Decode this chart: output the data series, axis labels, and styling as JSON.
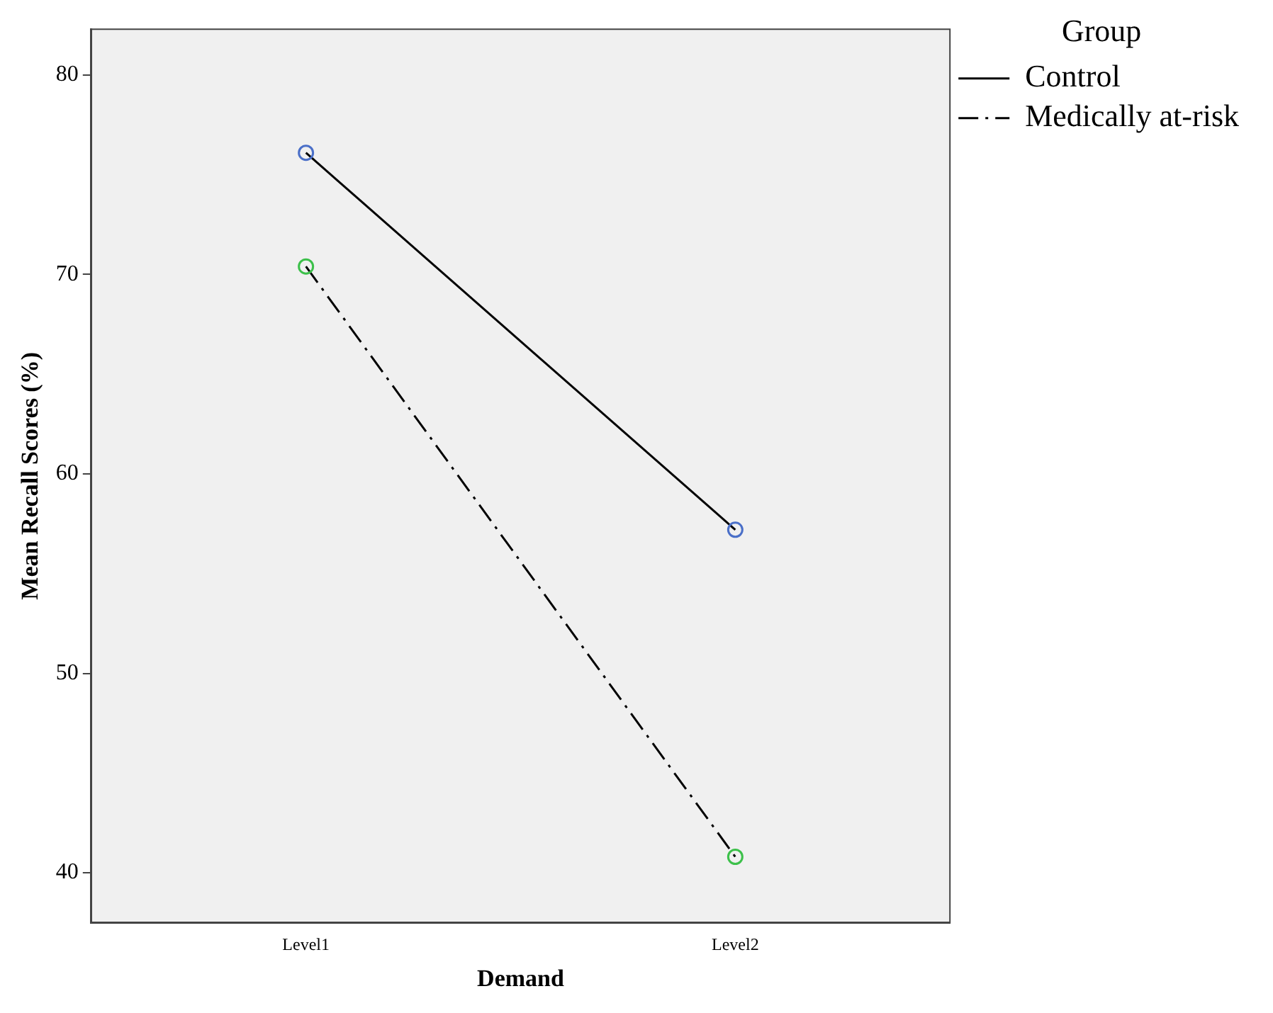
{
  "chart_data": {
    "type": "line",
    "xlabel": "Demand",
    "ylabel": "Mean Recall Scores (%)",
    "legend_title": "Group",
    "legend": "top right",
    "marker": "circle",
    "grid": false,
    "categories": [
      "Level1",
      "Level2"
    ],
    "ylim": [
      37.5,
      82.3
    ],
    "yticks": [
      40,
      50,
      60,
      70,
      80
    ],
    "series": [
      {
        "name": "Control",
        "color": "#000000",
        "colors": [
          "#4a6fc8",
          "#4a6fc8"
        ],
        "line_style": "solid",
        "values": [
          76.1,
          57.2
        ]
      },
      {
        "name": "Medically at-risk",
        "color": "#000000",
        "colors": [
          "#3cc04a",
          "#3cc04a"
        ],
        "line_style": "dashed",
        "values": [
          70.4,
          40.8
        ]
      }
    ]
  }
}
